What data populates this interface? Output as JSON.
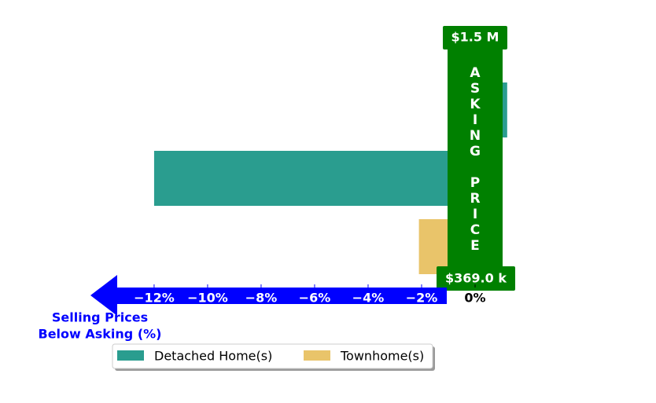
{
  "chart_data": {
    "type": "bar",
    "orientation": "horizontal",
    "categories": [
      null,
      null,
      null
    ],
    "series": [
      {
        "name": "Detached Home(s)",
        "color": "#2a9d8f",
        "values": [
          1.2,
          -12,
          null
        ]
      },
      {
        "name": "Townhome(s)",
        "color": "#e9c46a",
        "values": [
          null,
          null,
          -2.1
        ]
      }
    ],
    "xlim": [
      -14.38,
      1.5
    ],
    "xticks": [
      {
        "value": -12,
        "label": "−12%"
      },
      {
        "value": -10,
        "label": "−10%"
      },
      {
        "value": -8,
        "label": "−8%"
      },
      {
        "value": -6,
        "label": "−6%"
      },
      {
        "value": -4,
        "label": "−4%"
      },
      {
        "value": -2,
        "label": "−2%"
      },
      {
        "value": 0,
        "label": "0%"
      }
    ],
    "xlabel": [
      "Selling Prices",
      "Below Asking (%)"
    ],
    "annotations": {
      "asking_label": "ASKING PRICE",
      "top_price": "$1.5 M",
      "bottom_price": "$369.0 k"
    },
    "arrow_color": "#0000ff",
    "asking_color": "#008000",
    "legend": "bottom"
  }
}
